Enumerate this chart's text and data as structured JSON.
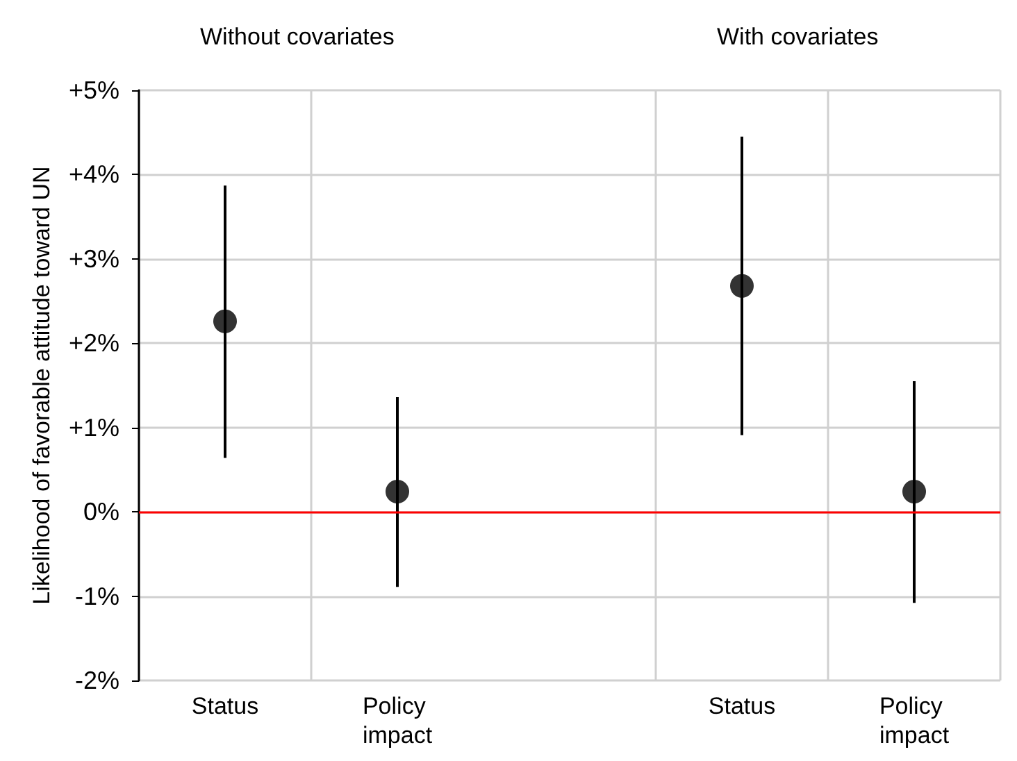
{
  "chart_data": {
    "type": "scatter",
    "ylabel": "Likelihood of favorable attitude toward UN",
    "annotations": [
      "Without covariates",
      "With covariates"
    ],
    "categories": [
      "Status",
      "Policy impact",
      null,
      "Status",
      "Policy impact"
    ],
    "series": [
      {
        "color": "#000000",
        "values": [
          2.26,
          0.24,
          null,
          2.68,
          0.24
        ],
        "errors": [
          [
            0.64,
            3.87
          ],
          [
            -0.89,
            1.36
          ],
          null,
          [
            0.91,
            4.45
          ],
          [
            -1.08,
            1.55
          ]
        ]
      }
    ],
    "marker": "circle",
    "ylim": [
      -2,
      5
    ],
    "yticks": [
      {
        "value": -2,
        "label": "-2%"
      },
      {
        "value": -1,
        "label": "-1%"
      },
      {
        "value": 0,
        "label": "0%"
      },
      {
        "value": 1,
        "label": "+1%"
      },
      {
        "value": 2,
        "label": "+2%"
      },
      {
        "value": 3,
        "label": "+3%"
      },
      {
        "value": 4,
        "label": "+4%"
      },
      {
        "value": 5,
        "label": "+5%"
      }
    ],
    "grid": true,
    "ref_lines": [
      {
        "axis": "y",
        "value": 0,
        "color": "#ff0000"
      }
    ]
  }
}
